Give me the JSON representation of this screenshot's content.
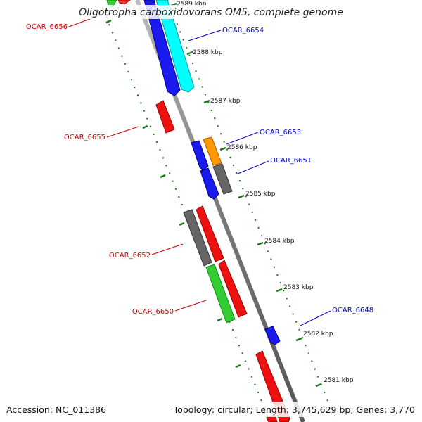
{
  "title": "Oligotropha carboxidovorans OM5, complete genome",
  "footer": {
    "accession": "Accession: NC_011386",
    "summary": "Topology: circular; Length: 3,745,629 bp; Genes: 3,770"
  },
  "colors": {
    "backbone": "#8c8c8c",
    "tick": "#1a7a1a",
    "forward_label": "#0000cc",
    "reverse_label": "#cc0000"
  },
  "ruler": [
    "2589 kbp",
    "2588 kbp",
    "2587 kbp",
    "2586 kbp",
    "2585 kbp",
    "2584 kbp",
    "2583 kbp",
    "2582 kbp",
    "2581 kbp"
  ],
  "forward_genes": [
    {
      "label": "OCAR_6654",
      "color": "#0000ee"
    },
    {
      "label": "OCAR_6653",
      "color": "#ff9900"
    },
    {
      "label": "OCAR_6651",
      "color": "#0000ee"
    },
    {
      "label": "OCAR_6648",
      "color": "#0000ee"
    }
  ],
  "reverse_genes": [
    {
      "label": "OCAR_6656",
      "color": "#ee0000"
    },
    {
      "label": "OCAR_6655",
      "color": "#ee0000"
    },
    {
      "label": "OCAR_6652",
      "color": "#ee0000"
    },
    {
      "label": "OCAR_6650",
      "color": "#ee0000"
    }
  ],
  "unlabeled_gene_colors": [
    "#00ffff",
    "#666666",
    "#33cc33"
  ]
}
